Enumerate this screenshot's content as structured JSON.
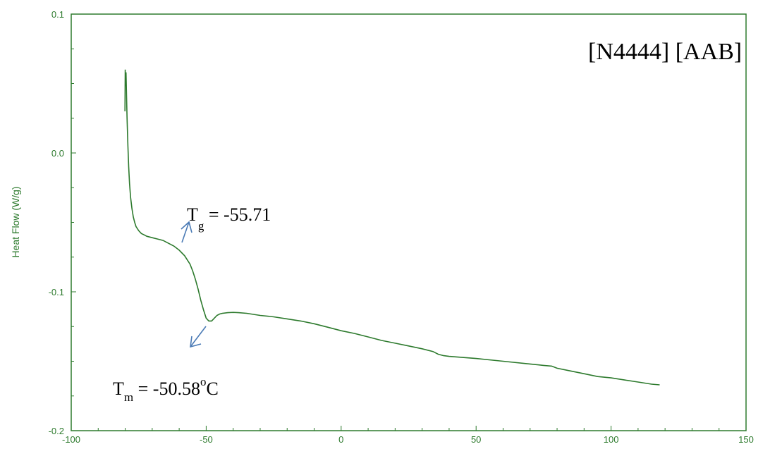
{
  "chart_data": {
    "type": "line",
    "title": "[N4444] [AAB]",
    "xlabel": "",
    "ylabel": "Heat Flow (W/g)",
    "xlim": [
      -100,
      150
    ],
    "ylim": [
      -0.2,
      0.1
    ],
    "x_ticks": [
      "-100",
      "-50",
      "0",
      "50",
      "100",
      "150"
    ],
    "y_ticks": [
      "0.1",
      "0.0",
      "-0.1",
      "-0.2"
    ],
    "x_tick_values": [
      -100,
      -50,
      0,
      50,
      100,
      150
    ],
    "y_tick_values": [
      0.1,
      0.0,
      -0.1,
      -0.2
    ],
    "grid": false,
    "colors": {
      "line": "#2d7a2d",
      "axis": "#2d7a2d",
      "arrow": "#4a7ab5"
    },
    "series": [
      {
        "x": [
          -80.1,
          -80.0,
          -79.9,
          -79.7,
          -79.5,
          -79.3,
          -79.0,
          -78.7,
          -78.4,
          -78.0,
          -77.5,
          -77.0,
          -76.5,
          -76.0,
          -75.0,
          -74.0,
          -73.0,
          -72.0,
          -70.0,
          -68.0,
          -66.0,
          -64.0,
          -62.0,
          -60.0,
          -58.0,
          -56.0,
          -55.0,
          -54.0,
          -53.0,
          -52.0,
          -51.0,
          -50.0,
          -49.0,
          -48.0,
          -47.0,
          -46.0,
          -45.0,
          -44.0,
          -42.0,
          -40.0,
          -38.0,
          -35.0,
          -30.0,
          -25.0,
          -20.0,
          -15.0,
          -10.0,
          -5.0,
          0.0,
          5.0,
          10.0,
          15.0,
          20.0,
          25.0,
          30.0,
          34.0,
          36.0,
          38.0,
          40.0,
          50.0,
          60.0,
          70.0,
          75.0,
          78.0,
          80.0,
          85.0,
          90.0,
          95.0,
          100.0,
          105.0,
          110.0,
          115.0,
          118.0
        ],
        "y": [
          0.03,
          0.06,
          0.048,
          0.058,
          0.04,
          0.025,
          0.005,
          -0.01,
          -0.022,
          -0.032,
          -0.04,
          -0.046,
          -0.05,
          -0.053,
          -0.056,
          -0.058,
          -0.059,
          -0.06,
          -0.061,
          -0.062,
          -0.063,
          -0.065,
          -0.067,
          -0.07,
          -0.074,
          -0.08,
          -0.085,
          -0.091,
          -0.098,
          -0.106,
          -0.113,
          -0.119,
          -0.121,
          -0.121,
          -0.119,
          -0.117,
          -0.116,
          -0.1155,
          -0.115,
          -0.1148,
          -0.115,
          -0.1155,
          -0.117,
          -0.118,
          -0.1195,
          -0.121,
          -0.123,
          -0.1255,
          -0.128,
          -0.13,
          -0.1325,
          -0.135,
          -0.137,
          -0.139,
          -0.141,
          -0.143,
          -0.145,
          -0.146,
          -0.1465,
          -0.148,
          -0.15,
          -0.152,
          -0.153,
          -0.1535,
          -0.155,
          -0.157,
          -0.159,
          -0.161,
          -0.162,
          -0.1635,
          -0.165,
          -0.1665,
          -0.167
        ]
      }
    ],
    "annotations": [
      {
        "symbol": "T",
        "subscript": "g",
        "text": " = -55.71",
        "x": -60,
        "y": -0.045
      },
      {
        "symbol": "T",
        "subscript": "m",
        "text": " = -50.58",
        "superscript": "o",
        "unit": "C",
        "x": -85,
        "y": -0.168
      }
    ]
  }
}
